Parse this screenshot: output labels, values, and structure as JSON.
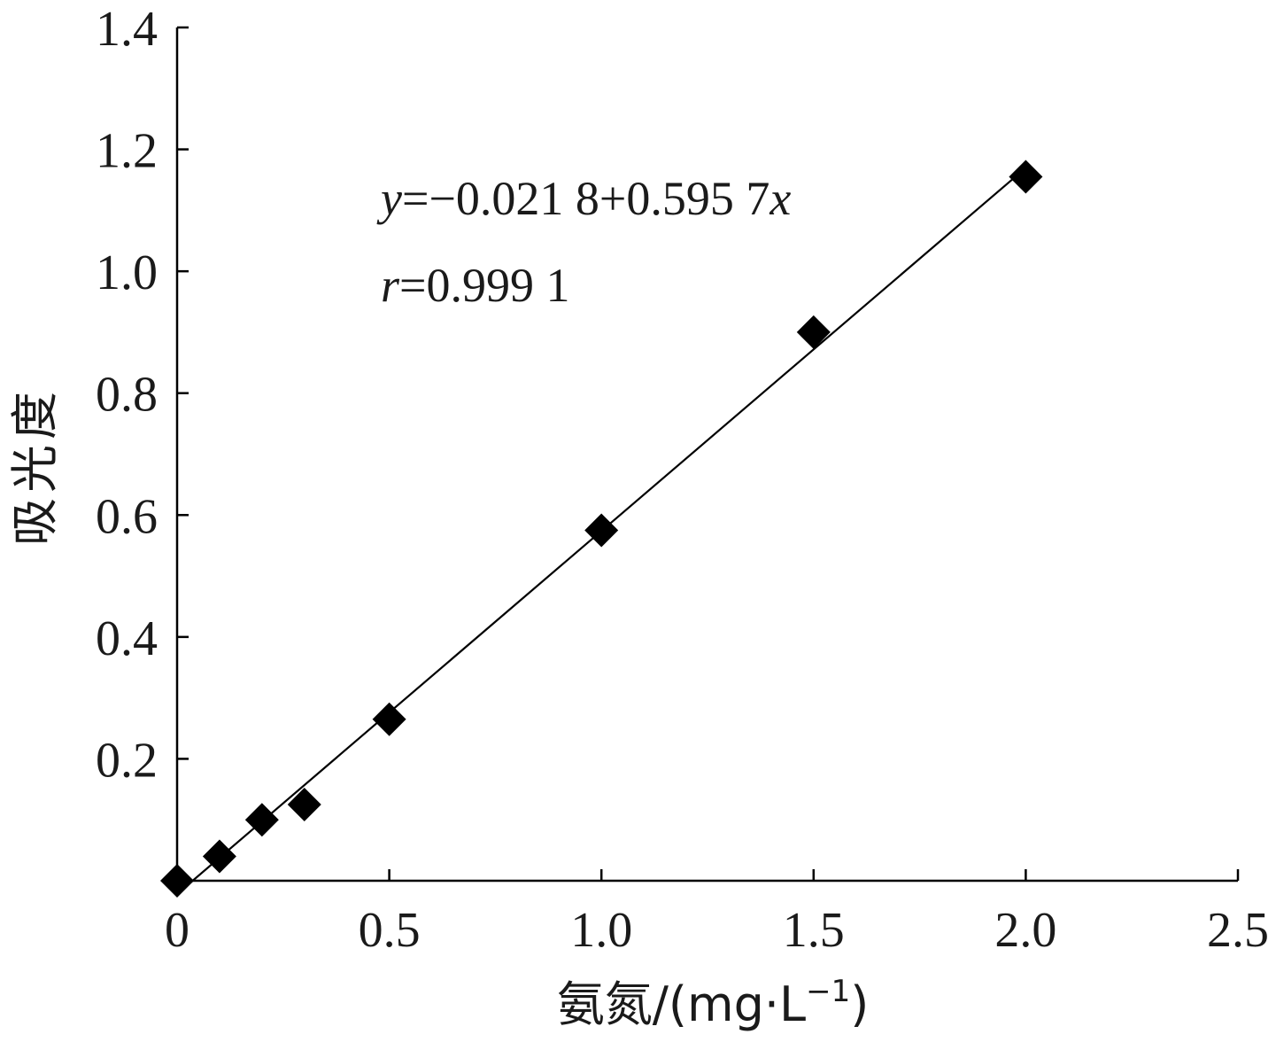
{
  "chart_data": {
    "type": "scatter",
    "x_ticks": [
      "0",
      "0.5",
      "1.0",
      "1.5",
      "2.0",
      "2.5"
    ],
    "y_ticks": [
      "0.2",
      "0.4",
      "0.6",
      "0.8",
      "1.0",
      "1.2",
      "1.4"
    ],
    "xlim": [
      0,
      2.5
    ],
    "ylim": [
      0,
      1.4
    ],
    "xlabel": "氨氮/(mg·L⁻¹)",
    "xlabel_parts": {
      "text": "氨氮/(mg·L",
      "sup": "−1",
      "close": ")"
    },
    "ylabel": "吸光度",
    "grid": false,
    "points": [
      {
        "x": 0,
        "y": 0.0
      },
      {
        "x": 0.1,
        "y": 0.04
      },
      {
        "x": 0.2,
        "y": 0.1
      },
      {
        "x": 0.3,
        "y": 0.125
      },
      {
        "x": 0.5,
        "y": 0.265
      },
      {
        "x": 1.0,
        "y": 0.575
      },
      {
        "x": 1.5,
        "y": 0.9
      },
      {
        "x": 2.0,
        "y": 1.155
      }
    ],
    "fit_line": {
      "intercept": -0.0218,
      "slope": 0.5957,
      "x_range": [
        0,
        2.0
      ]
    },
    "annotations": {
      "equation": {
        "var": "y",
        "rest": "=−0.021 8+0.595 7",
        "var2": "x"
      },
      "r": {
        "var": "r",
        "rest": "=0.999 1"
      }
    },
    "marker": "diamond",
    "color": "#000000"
  }
}
